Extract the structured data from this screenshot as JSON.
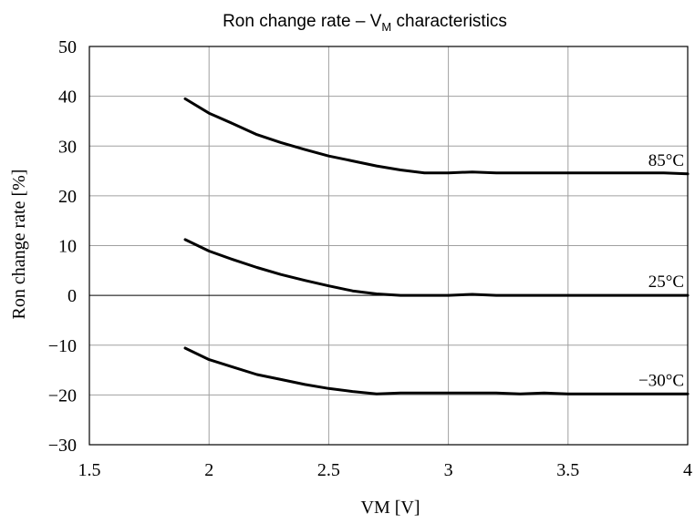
{
  "chart_data": {
    "type": "line",
    "title": {
      "main": "Ron change rate – V",
      "subscript": "M",
      "rest": " characteristics"
    },
    "xlabel": "VM [V]",
    "ylabel": "Ron change rate [%]",
    "xlim": [
      1.5,
      4
    ],
    "ylim": [
      -30,
      50
    ],
    "xticks": [
      1.5,
      2,
      2.5,
      3,
      3.5,
      4
    ],
    "xtick_labels": [
      "1.5",
      "2",
      "2.5",
      "3",
      "3.5",
      "4"
    ],
    "yticks": [
      50,
      40,
      30,
      20,
      10,
      0,
      -10,
      -20,
      -30
    ],
    "ytick_labels": [
      "50",
      "40",
      "30",
      "20",
      "10",
      "0",
      "−10",
      "−20",
      "−30"
    ],
    "grid": true,
    "legend": "none",
    "series": [
      {
        "name": "85°C",
        "x": [
          1.9,
          2.0,
          2.1,
          2.2,
          2.3,
          2.4,
          2.5,
          2.6,
          2.7,
          2.8,
          2.9,
          3.0,
          3.1,
          3.2,
          3.3,
          3.4,
          3.5,
          3.6,
          3.7,
          3.8,
          3.9,
          4.0
        ],
        "values": [
          39.5,
          36.6,
          34.5,
          32.3,
          30.7,
          29.3,
          28.0,
          27.0,
          26.0,
          25.2,
          24.6,
          24.6,
          24.8,
          24.6,
          24.6,
          24.6,
          24.6,
          24.6,
          24.6,
          24.6,
          24.6,
          24.4
        ]
      },
      {
        "name": "25°C",
        "x": [
          1.9,
          2.0,
          2.1,
          2.2,
          2.3,
          2.4,
          2.5,
          2.6,
          2.7,
          2.8,
          2.9,
          3.0,
          3.1,
          3.2,
          3.3,
          3.4,
          3.5,
          3.6,
          3.7,
          3.8,
          3.9,
          4.0
        ],
        "values": [
          11.2,
          8.9,
          7.2,
          5.6,
          4.2,
          3.0,
          1.9,
          0.9,
          0.3,
          0.0,
          0.0,
          0.0,
          0.2,
          0.0,
          0.0,
          0.0,
          0.0,
          0.0,
          0.0,
          0.0,
          0.0,
          0.0
        ]
      },
      {
        "name": "−30°C",
        "x": [
          1.9,
          2.0,
          2.1,
          2.2,
          2.3,
          2.4,
          2.5,
          2.6,
          2.7,
          2.8,
          2.9,
          3.0,
          3.1,
          3.2,
          3.3,
          3.4,
          3.5,
          3.6,
          3.7,
          3.8,
          3.9,
          4.0
        ],
        "values": [
          -10.6,
          -12.9,
          -14.4,
          -15.9,
          -16.9,
          -17.9,
          -18.7,
          -19.3,
          -19.8,
          -19.6,
          -19.6,
          -19.6,
          -19.6,
          -19.6,
          -19.8,
          -19.6,
          -19.8,
          -19.8,
          -19.8,
          -19.8,
          -19.8,
          -19.8
        ]
      }
    ]
  }
}
